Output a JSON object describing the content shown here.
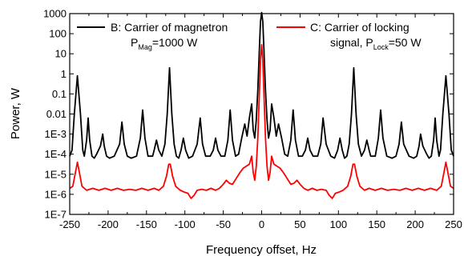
{
  "chart_data": {
    "type": "line",
    "xlabel": "Frequency offset, Hz",
    "ylabel": "Power, W",
    "xlim": [
      -250,
      250
    ],
    "ylim_log10": [
      -7,
      3
    ],
    "y_scale": "log",
    "x_ticks": [
      -250,
      -200,
      -150,
      -100,
      -50,
      0,
      50,
      100,
      150,
      200,
      250
    ],
    "x_tick_labels": [
      "-250",
      "-200",
      "-150",
      "-100",
      "-50",
      "0",
      "50",
      "100",
      "150",
      "200",
      "250"
    ],
    "y_ticks_log10": [
      3,
      2,
      1,
      0,
      -1,
      -2,
      -3,
      -4,
      -5,
      -6,
      -7
    ],
    "y_tick_labels": [
      "1000",
      "100",
      "10",
      "1",
      "0.1",
      "0.01",
      "1E-3",
      "1E-4",
      "1E-5",
      "1E-6",
      "1E-7"
    ],
    "grid": false,
    "legend": [
      {
        "series": "B",
        "color": "#000000",
        "line1": "B: Carrier of magnetron",
        "line2_main": "P",
        "line2_sub": "Mag",
        "line2_rest": "=1000 W"
      },
      {
        "series": "C",
        "color": "#ff0000",
        "line1": "C: Carrier of locking",
        "line2_main": "signal, P",
        "line2_sub": "Lock",
        "line2_rest": "=50 W"
      }
    ],
    "series": [
      {
        "name": "B: Carrier of magnetron",
        "color": "#000000",
        "points": [
          [
            -250,
            -4.1
          ],
          [
            -247,
            -3.8
          ],
          [
            -244,
            -2
          ],
          [
            -240,
            -0.1
          ],
          [
            -236,
            -2
          ],
          [
            -233,
            -3.8
          ],
          [
            -231,
            -4.1
          ],
          [
            -228,
            -3.3
          ],
          [
            -226,
            -2.2
          ],
          [
            -224,
            -3.3
          ],
          [
            -221,
            -4.1
          ],
          [
            -218,
            -4.2
          ],
          [
            -215,
            -4.0
          ],
          [
            -210,
            -3.6
          ],
          [
            -207,
            -3.0
          ],
          [
            -205,
            -3.6
          ],
          [
            -202,
            -4.1
          ],
          [
            -198,
            -4.2
          ],
          [
            -192,
            -4.1
          ],
          [
            -185,
            -3.5
          ],
          [
            -182,
            -2.4
          ],
          [
            -179,
            -3.5
          ],
          [
            -175,
            -4.1
          ],
          [
            -170,
            -4.2
          ],
          [
            -163,
            -4.1
          ],
          [
            -158,
            -3.2
          ],
          [
            -155,
            -1.8
          ],
          [
            -152,
            -3.2
          ],
          [
            -148,
            -4.1
          ],
          [
            -142,
            -4.1
          ],
          [
            -140,
            -3.8
          ],
          [
            -137,
            -3.3
          ],
          [
            -134,
            -3.8
          ],
          [
            -130,
            -4.1
          ],
          [
            -126,
            -3.5
          ],
          [
            -123,
            -2
          ],
          [
            -120,
            0.3
          ],
          [
            -117,
            -2
          ],
          [
            -114,
            -3.5
          ],
          [
            -111,
            -4.1
          ],
          [
            -108,
            -4.2
          ],
          [
            -105,
            -3.8
          ],
          [
            -102,
            -3.2
          ],
          [
            -99,
            -3.8
          ],
          [
            -95,
            -4.2
          ],
          [
            -90,
            -4.1
          ],
          [
            -84,
            -3.5
          ],
          [
            -80,
            -2.2
          ],
          [
            -77,
            -3.5
          ],
          [
            -73,
            -4.1
          ],
          [
            -67,
            -4.1
          ],
          [
            -63,
            -3.8
          ],
          [
            -60,
            -3.2
          ],
          [
            -57,
            -3.8
          ],
          [
            -53,
            -4.1
          ],
          [
            -48,
            -4.1
          ],
          [
            -44,
            -3.3
          ],
          [
            -41,
            -1.8
          ],
          [
            -38,
            -3.3
          ],
          [
            -34,
            -4.1
          ],
          [
            -30,
            -4.0
          ],
          [
            -26,
            -3.2
          ],
          [
            -22,
            -2.5
          ],
          [
            -19,
            -3.1
          ],
          [
            -16,
            -2.2
          ],
          [
            -13,
            -1.5
          ],
          [
            -11,
            -2.8
          ],
          [
            -9,
            -3.2
          ],
          [
            -7,
            -2.3
          ],
          [
            -5,
            -0.8
          ],
          [
            -3,
            1.2
          ],
          [
            -1.5,
            2.6
          ],
          [
            0,
            3.05
          ],
          [
            1.5,
            2.6
          ],
          [
            3,
            1.2
          ],
          [
            5,
            -0.8
          ],
          [
            7,
            -2.3
          ],
          [
            9,
            -3.2
          ],
          [
            11,
            -2.8
          ],
          [
            13,
            -1.5
          ],
          [
            16,
            -2.2
          ],
          [
            19,
            -3.1
          ],
          [
            22,
            -2.5
          ],
          [
            26,
            -3.2
          ],
          [
            30,
            -4.0
          ],
          [
            34,
            -4.1
          ],
          [
            38,
            -3.3
          ],
          [
            41,
            -1.8
          ],
          [
            44,
            -3.3
          ],
          [
            48,
            -4.1
          ],
          [
            53,
            -4.1
          ],
          [
            57,
            -3.8
          ],
          [
            60,
            -3.2
          ],
          [
            63,
            -3.8
          ],
          [
            67,
            -4.1
          ],
          [
            73,
            -4.1
          ],
          [
            77,
            -3.5
          ],
          [
            80,
            -2.2
          ],
          [
            84,
            -3.5
          ],
          [
            90,
            -4.1
          ],
          [
            95,
            -4.2
          ],
          [
            99,
            -3.8
          ],
          [
            102,
            -3.2
          ],
          [
            105,
            -3.8
          ],
          [
            108,
            -4.2
          ],
          [
            111,
            -4.1
          ],
          [
            114,
            -3.5
          ],
          [
            117,
            -2
          ],
          [
            120,
            0.3
          ],
          [
            123,
            -2
          ],
          [
            126,
            -3.5
          ],
          [
            130,
            -4.1
          ],
          [
            134,
            -3.8
          ],
          [
            137,
            -3.3
          ],
          [
            140,
            -3.8
          ],
          [
            142,
            -4.1
          ],
          [
            148,
            -4.1
          ],
          [
            152,
            -3.2
          ],
          [
            155,
            -1.8
          ],
          [
            158,
            -3.2
          ],
          [
            163,
            -4.1
          ],
          [
            170,
            -4.2
          ],
          [
            175,
            -4.1
          ],
          [
            179,
            -3.5
          ],
          [
            182,
            -2.4
          ],
          [
            185,
            -3.5
          ],
          [
            192,
            -4.1
          ],
          [
            198,
            -4.2
          ],
          [
            202,
            -4.1
          ],
          [
            205,
            -3.6
          ],
          [
            207,
            -3.0
          ],
          [
            210,
            -3.6
          ],
          [
            215,
            -4.0
          ],
          [
            218,
            -4.2
          ],
          [
            221,
            -4.1
          ],
          [
            224,
            -3.3
          ],
          [
            226,
            -2.2
          ],
          [
            228,
            -3.3
          ],
          [
            231,
            -4.1
          ],
          [
            233,
            -3.8
          ],
          [
            236,
            -2
          ],
          [
            240,
            -0.1
          ],
          [
            244,
            -2
          ],
          [
            247,
            -3.8
          ],
          [
            250,
            -4.1
          ]
        ]
      },
      {
        "name": "C: Carrier of locking signal",
        "color": "#ff0000",
        "points": [
          [
            -250,
            -5.7
          ],
          [
            -246,
            -5.6
          ],
          [
            -243,
            -5.0
          ],
          [
            -240,
            -4.4
          ],
          [
            -237,
            -5.0
          ],
          [
            -234,
            -5.6
          ],
          [
            -228,
            -5.8
          ],
          [
            -220,
            -5.7
          ],
          [
            -212,
            -5.8
          ],
          [
            -204,
            -5.7
          ],
          [
            -196,
            -5.8
          ],
          [
            -188,
            -5.7
          ],
          [
            -180,
            -5.8
          ],
          [
            -172,
            -5.75
          ],
          [
            -164,
            -5.8
          ],
          [
            -156,
            -5.7
          ],
          [
            -148,
            -5.8
          ],
          [
            -140,
            -5.7
          ],
          [
            -134,
            -5.8
          ],
          [
            -128,
            -5.6
          ],
          [
            -124,
            -5.1
          ],
          [
            -121,
            -4.5
          ],
          [
            -119,
            -4.5
          ],
          [
            -116,
            -5.1
          ],
          [
            -112,
            -5.6
          ],
          [
            -106,
            -5.8
          ],
          [
            -100,
            -5.9
          ],
          [
            -96,
            -5.95
          ],
          [
            -92,
            -6.2
          ],
          [
            -88,
            -6.05
          ],
          [
            -84,
            -5.8
          ],
          [
            -78,
            -5.75
          ],
          [
            -72,
            -5.8
          ],
          [
            -66,
            -5.7
          ],
          [
            -60,
            -5.8
          ],
          [
            -55,
            -5.7
          ],
          [
            -50,
            -5.5
          ],
          [
            -46,
            -5.3
          ],
          [
            -42,
            -5.45
          ],
          [
            -38,
            -5.5
          ],
          [
            -33,
            -5.2
          ],
          [
            -28,
            -4.9
          ],
          [
            -24,
            -4.7
          ],
          [
            -20,
            -4.6
          ],
          [
            -16,
            -4.5
          ],
          [
            -13,
            -4.1
          ],
          [
            -11,
            -4.9
          ],
          [
            -9,
            -5.3
          ],
          [
            -7,
            -4.6
          ],
          [
            -5,
            -3.2
          ],
          [
            -3,
            -1.0
          ],
          [
            -1.5,
            0.7
          ],
          [
            0,
            1.45
          ],
          [
            1.5,
            0.7
          ],
          [
            3,
            -1.0
          ],
          [
            5,
            -3.2
          ],
          [
            7,
            -4.6
          ],
          [
            9,
            -5.3
          ],
          [
            11,
            -4.9
          ],
          [
            13,
            -4.1
          ],
          [
            16,
            -4.5
          ],
          [
            20,
            -4.6
          ],
          [
            24,
            -4.7
          ],
          [
            28,
            -4.9
          ],
          [
            33,
            -5.2
          ],
          [
            38,
            -5.5
          ],
          [
            42,
            -5.45
          ],
          [
            46,
            -5.3
          ],
          [
            50,
            -5.5
          ],
          [
            55,
            -5.7
          ],
          [
            60,
            -5.8
          ],
          [
            66,
            -5.7
          ],
          [
            72,
            -5.8
          ],
          [
            78,
            -5.75
          ],
          [
            84,
            -5.8
          ],
          [
            88,
            -6.05
          ],
          [
            92,
            -6.2
          ],
          [
            96,
            -5.95
          ],
          [
            100,
            -5.9
          ],
          [
            106,
            -5.8
          ],
          [
            112,
            -5.6
          ],
          [
            116,
            -5.1
          ],
          [
            119,
            -4.5
          ],
          [
            121,
            -4.5
          ],
          [
            124,
            -5.1
          ],
          [
            128,
            -5.6
          ],
          [
            134,
            -5.8
          ],
          [
            140,
            -5.7
          ],
          [
            148,
            -5.8
          ],
          [
            156,
            -5.7
          ],
          [
            164,
            -5.8
          ],
          [
            172,
            -5.75
          ],
          [
            180,
            -5.8
          ],
          [
            188,
            -5.7
          ],
          [
            196,
            -5.8
          ],
          [
            204,
            -5.7
          ],
          [
            212,
            -5.8
          ],
          [
            220,
            -5.7
          ],
          [
            228,
            -5.8
          ],
          [
            234,
            -5.6
          ],
          [
            237,
            -5.0
          ],
          [
            240,
            -4.4
          ],
          [
            243,
            -5.0
          ],
          [
            246,
            -5.6
          ],
          [
            250,
            -5.7
          ]
        ]
      }
    ]
  }
}
